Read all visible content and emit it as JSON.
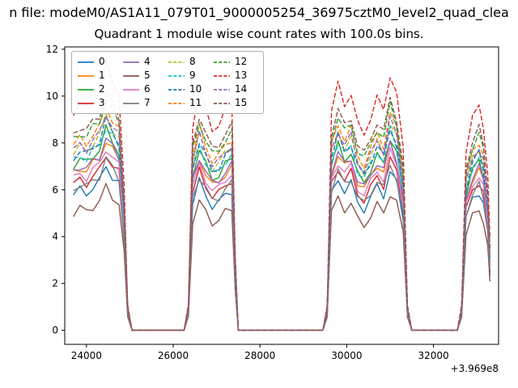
{
  "suptitle": "n file: modeM0/AS1A11_079T01_9000005254_36975cztM0_level2_quad_clea",
  "title": "Quadrant 1 module wise count rates with 100.0s bins.",
  "chart_data": {
    "type": "line",
    "title": "Quadrant 1 module wise count rates with 100.0s bins.",
    "xlabel": "",
    "ylabel": "",
    "x_offset_text": "+3.969e8",
    "xlim": [
      23500,
      33500
    ],
    "ylim": [
      -0.6,
      12.1
    ],
    "x_ticks": [
      24000,
      26000,
      28000,
      30000,
      32000
    ],
    "x_tick_labels": [
      "24000",
      "26000",
      "28000",
      "30000",
      "32000"
    ],
    "y_ticks": [
      0,
      2,
      4,
      6,
      8,
      10,
      12
    ],
    "y_tick_labels": [
      "0",
      "2",
      "4",
      "6",
      "8",
      "10",
      "12"
    ],
    "grid": false,
    "legend_position": "upper left",
    "legend_columns": 4,
    "jitter_amplitude": 0.22,
    "x": [
      23700,
      23850,
      24000,
      24150,
      24300,
      24450,
      24600,
      24750,
      24870,
      24950,
      25050,
      26250,
      26350,
      26450,
      26600,
      26750,
      26900,
      27050,
      27200,
      27350,
      27430,
      27500,
      29450,
      29550,
      29650,
      29800,
      29950,
      30100,
      30250,
      30400,
      30550,
      30700,
      30850,
      31000,
      31150,
      31300,
      31400,
      31500,
      32550,
      32650,
      32750,
      32900,
      33050,
      33150,
      33250,
      33300
    ],
    "envelope": [
      0.85,
      0.88,
      0.86,
      0.9,
      0.93,
      1.03,
      0.97,
      0.92,
      0.55,
      0.1,
      0,
      0,
      0.1,
      0.8,
      0.93,
      0.85,
      0.78,
      0.8,
      0.85,
      0.88,
      0.3,
      0,
      0,
      0.1,
      0.85,
      0.95,
      0.88,
      0.92,
      0.8,
      0.76,
      0.83,
      0.9,
      0.85,
      1.0,
      0.92,
      0.7,
      0.1,
      0,
      0,
      0.1,
      0.7,
      0.82,
      0.87,
      0.8,
      0.6,
      0.35
    ],
    "series": [
      {
        "label": "0",
        "color": "#1f77b4",
        "dash": false,
        "peak_level": 6.8
      },
      {
        "label": "1",
        "color": "#ff7f0e",
        "dash": false,
        "peak_level": 7.9
      },
      {
        "label": "2",
        "color": "#2ca02c",
        "dash": false,
        "peak_level": 8.3
      },
      {
        "label": "3",
        "color": "#d62728",
        "dash": false,
        "peak_level": 7.3
      },
      {
        "label": "4",
        "color": "#9467bd",
        "dash": false,
        "peak_level": 8.0
      },
      {
        "label": "5",
        "color": "#8c564b",
        "dash": false,
        "peak_level": 5.9
      },
      {
        "label": "6",
        "color": "#e377c2",
        "dash": false,
        "peak_level": 7.6
      },
      {
        "label": "7",
        "color": "#7f7f7f",
        "dash": false,
        "peak_level": 7.1
      },
      {
        "label": "8",
        "color": "#bcbd22",
        "dash": true,
        "peak_level": 8.9
      },
      {
        "label": "9",
        "color": "#17becf",
        "dash": true,
        "peak_level": 8.5
      },
      {
        "label": "10",
        "color": "#1f77b4",
        "dash": true,
        "peak_level": 8.7
      },
      {
        "label": "11",
        "color": "#ff7f0e",
        "dash": true,
        "peak_level": 9.3
      },
      {
        "label": "12",
        "color": "#2ca02c",
        "dash": true,
        "peak_level": 9.6
      },
      {
        "label": "13",
        "color": "#d62728",
        "dash": true,
        "peak_level": 11.0
      },
      {
        "label": "14",
        "color": "#9467bd",
        "dash": true,
        "peak_level": 9.0
      },
      {
        "label": "15",
        "color": "#8c564b",
        "dash": true,
        "peak_level": 9.9
      }
    ]
  }
}
